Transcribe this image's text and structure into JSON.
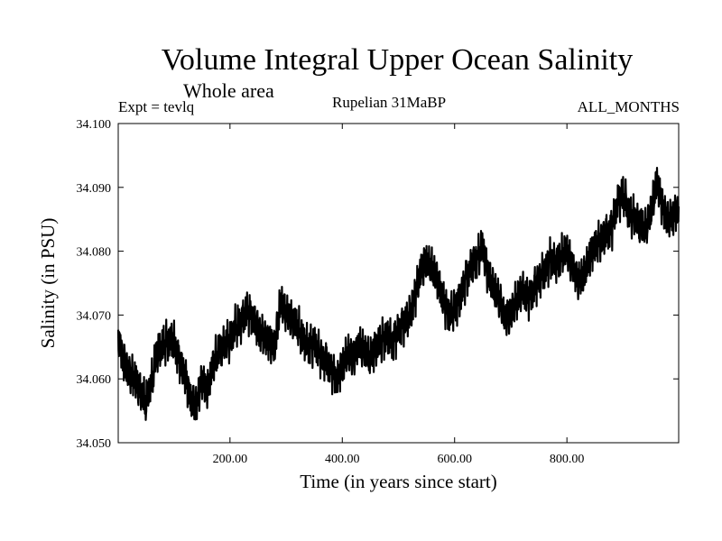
{
  "chart_data": {
    "type": "line",
    "title": "Volume Integral Upper Ocean Salinity",
    "subtitle": "Whole area",
    "experiment_label": "Expt = tevlq",
    "period_label": "Rupelian  31MaBP",
    "months_label": "ALL_MONTHS",
    "xlabel": "Time (in years since start)",
    "ylabel": "Salinity (in PSU)",
    "xlim": [
      1,
      999
    ],
    "ylim": [
      34.05,
      34.1
    ],
    "xticks": [
      200,
      400,
      600,
      800
    ],
    "xtick_labels": [
      "200.00",
      "400.00",
      "600.00",
      "800.00"
    ],
    "yticks": [
      34.05,
      34.06,
      34.07,
      34.08,
      34.09,
      34.1
    ],
    "ytick_labels": [
      "34.050",
      "34.060",
      "34.070",
      "34.080",
      "34.090",
      "34.100"
    ],
    "series": [
      {
        "name": "Salinity",
        "color": "#000000",
        "x": [
          1,
          10,
          20,
          30,
          40,
          50,
          60,
          70,
          80,
          90,
          100,
          110,
          120,
          130,
          140,
          150,
          160,
          170,
          180,
          190,
          200,
          210,
          220,
          230,
          240,
          250,
          260,
          270,
          280,
          290,
          300,
          310,
          320,
          330,
          340,
          350,
          360,
          370,
          380,
          390,
          400,
          410,
          420,
          430,
          440,
          450,
          460,
          470,
          480,
          490,
          500,
          510,
          520,
          530,
          540,
          550,
          560,
          570,
          580,
          590,
          600,
          610,
          620,
          630,
          640,
          650,
          660,
          670,
          680,
          690,
          700,
          710,
          720,
          730,
          740,
          750,
          760,
          770,
          780,
          790,
          800,
          810,
          820,
          830,
          840,
          850,
          860,
          870,
          880,
          890,
          900,
          910,
          920,
          930,
          940,
          950,
          960,
          970,
          980,
          990,
          999
        ],
        "values": [
          34.067,
          34.063,
          34.061,
          34.06,
          34.058,
          34.056,
          34.059,
          34.064,
          34.065,
          34.066,
          34.066,
          34.063,
          34.061,
          34.057,
          34.056,
          34.06,
          34.058,
          34.062,
          34.064,
          34.065,
          34.066,
          34.068,
          34.069,
          34.071,
          34.07,
          34.068,
          34.067,
          34.066,
          34.065,
          34.072,
          34.07,
          34.069,
          34.068,
          34.066,
          34.065,
          34.066,
          34.064,
          34.063,
          34.062,
          34.06,
          34.062,
          34.064,
          34.063,
          34.065,
          34.064,
          34.063,
          34.065,
          34.066,
          34.067,
          34.066,
          34.068,
          34.069,
          34.07,
          34.073,
          34.077,
          34.078,
          34.077,
          34.075,
          34.072,
          34.07,
          34.071,
          34.073,
          34.076,
          34.078,
          34.079,
          34.081,
          34.076,
          34.074,
          34.072,
          34.069,
          34.07,
          34.072,
          34.074,
          34.073,
          34.074,
          34.076,
          34.077,
          34.079,
          34.078,
          34.079,
          34.08,
          34.077,
          34.075,
          34.076,
          34.079,
          34.081,
          34.082,
          34.083,
          34.084,
          34.088,
          34.089,
          34.086,
          34.085,
          34.084,
          34.083,
          34.086,
          34.091,
          34.087,
          34.085,
          34.086,
          34.087
        ]
      }
    ]
  }
}
